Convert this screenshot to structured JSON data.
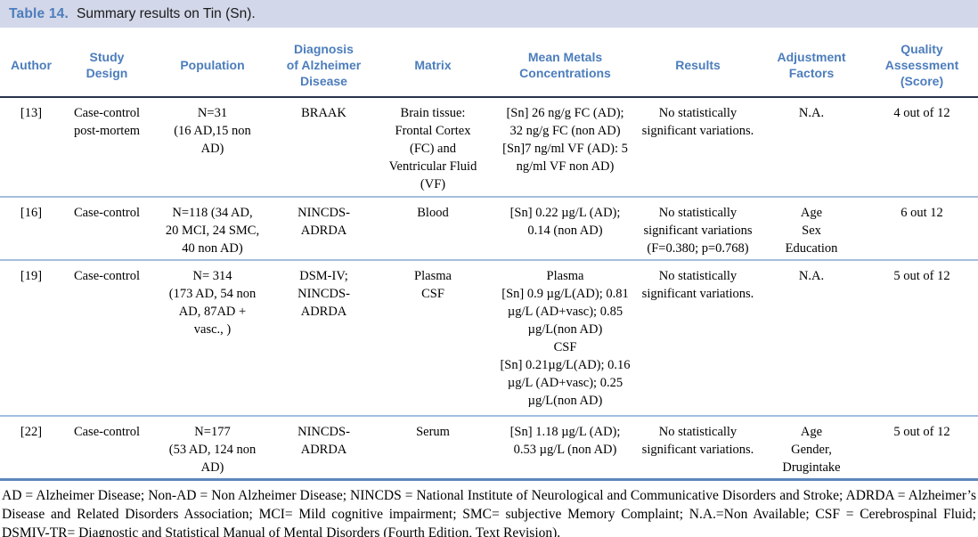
{
  "table": {
    "label": "Table 14.",
    "caption": "Summary results on Tin (Sn).",
    "columns": [
      "Author",
      "Study\nDesign",
      "Population",
      "Diagnosis\nof Alzheimer\nDisease",
      "Matrix",
      "Mean Metals\nConcentrations",
      "Results",
      "Adjustment\nFactors",
      "Quality\nAssessment\n(Score)"
    ],
    "rows": [
      {
        "author": "[13]",
        "study_design": "Case-control\npost-mortem",
        "population": "N=31\n(16 AD,15 non\nAD)",
        "diagnosis": "BRAAK",
        "matrix": "Brain tissue:\nFrontal Cortex\n(FC) and\nVentricular Fluid\n(VF)",
        "concentrations": "[Sn] 26 ng/g FC (AD);\n32 ng/g FC (non AD)\n[Sn]7 ng/ml VF (AD): 5\nng/ml VF non AD)",
        "results": "No statistically\nsignificant variations.",
        "adjustment_factors": "N.A.",
        "quality": "4 out of 12"
      },
      {
        "author": "[16]",
        "study_design": "Case-control",
        "population": "N=118 (34 AD,\n20 MCI, 24 SMC,\n40 non AD)",
        "diagnosis": "NINCDS-\nADRDA",
        "matrix": "Blood",
        "concentrations": "[Sn] 0.22 µg/L (AD);\n0.14 (non AD)",
        "results": "No statistically\nsignificant variations\n(F=0.380; p=0.768)",
        "adjustment_factors": "Age\nSex\nEducation",
        "quality": "6 out 12"
      },
      {
        "author": "[19]",
        "study_design": "Case-control",
        "population": "N= 314\n(173 AD, 54 non\nAD, 87AD +\nvasc., )",
        "diagnosis": "DSM-IV;\nNINCDS-\nADRDA",
        "matrix": "Plasma\nCSF",
        "concentrations": "Plasma\n[Sn] 0.9 µg/L(AD); 0.81\nµg/L (AD+vasc); 0.85\nµg/L(non AD)\nCSF\n[Sn] 0.21µg/L(AD); 0.16\nµg/L (AD+vasc); 0.25\nµg/L(non AD)",
        "results": "No statistically\nsignificant variations.",
        "adjustment_factors": "N.A.",
        "quality": "5 out of 12"
      },
      {
        "author": "[22]",
        "study_design": "Case-control",
        "population": "N=177\n(53 AD, 124 non\nAD)",
        "diagnosis": "NINCDS-\nADRDA",
        "matrix": "Serum",
        "concentrations": "[Sn] 1.18 µg/L (AD);\n0.53 µg/L (non AD)",
        "results": "No statistically\nsignificant variations.",
        "adjustment_factors": "Age\nGender,\nDrugintake",
        "quality": "5 out of 12"
      }
    ],
    "footnote": "AD = Alzheimer Disease; Non-AD = Non Alzheimer Disease; NINCDS = National Institute of Neurological and Communicative Disorders and Stroke; ADRDA = Alzheimer’s Disease and Related Disorders Association; MCI= Mild cognitive impairment; SMC= subjective Memory Complaint; N.A.=Non Available; CSF = Cerebrospinal Fluid; DSMIV-TR= Diagnostic and Statistical Manual of Mental Disorders (Fourth Edition, Text Revision)."
  },
  "colors": {
    "caption_band": "#d2d7e9",
    "heading_blue": "#4c7dbc",
    "header_rule": "#26334d",
    "row_separator": "#a3bedd",
    "footnote_rule": "#5d88ba"
  }
}
